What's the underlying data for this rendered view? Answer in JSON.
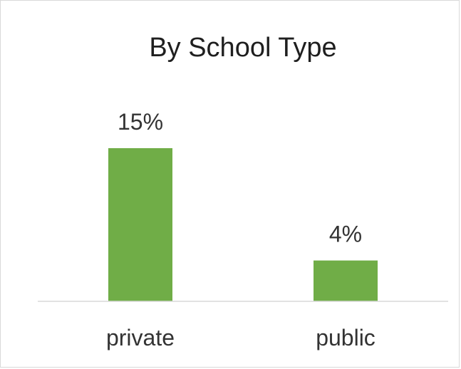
{
  "chart_data": {
    "type": "bar",
    "title": "By School Type",
    "categories": [
      "private",
      "public"
    ],
    "values": [
      15,
      4
    ],
    "data_labels": [
      "15%",
      "4%"
    ],
    "xlabel": "",
    "ylabel": "",
    "ylim": [
      0,
      15
    ],
    "grid": false,
    "legend": "none",
    "bar_color": "#70ad47",
    "axis_color": "#d9d9d9"
  }
}
